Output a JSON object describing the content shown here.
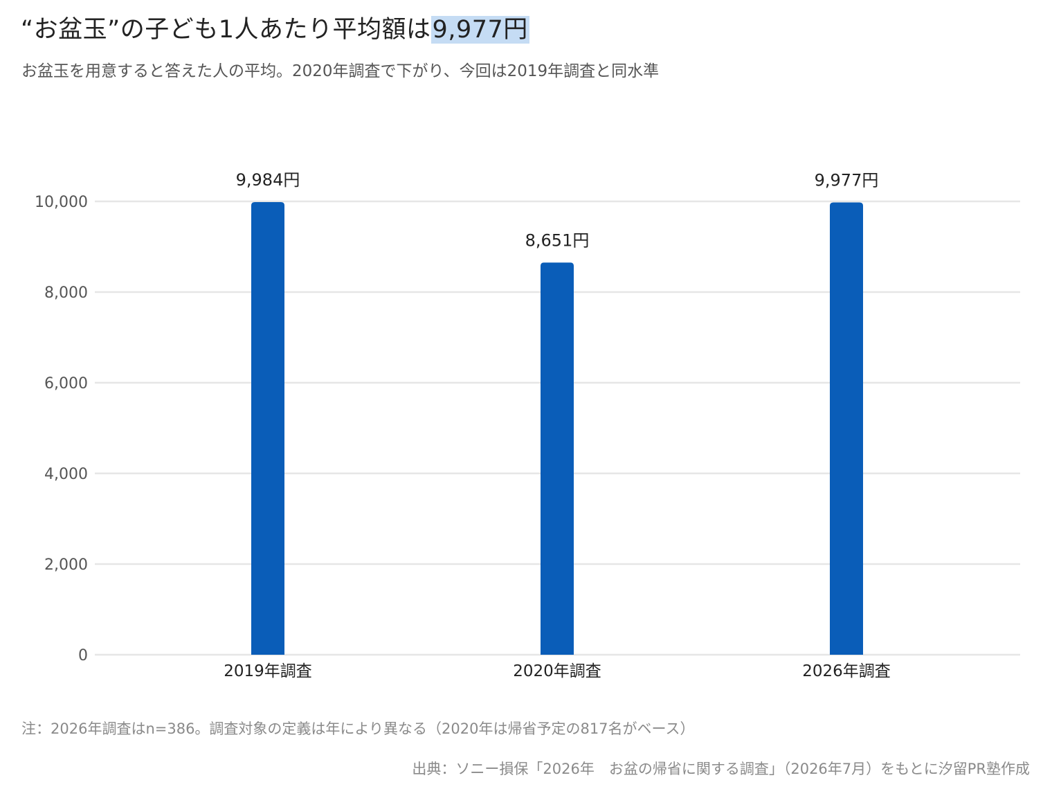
{
  "header": {
    "title_main": "“お盆玉”の子ども1人あたり平均額は",
    "title_highlight": "9,977円",
    "subtitle": "お盆玉を用意すると答えた人の平均。2020年調査で下がり、今回は2019年調査と同水準"
  },
  "footer": {
    "note": "注：2026年調査はn=386。調査対象の定義は年により異なる（2020年は帰省予定の817名がベース）",
    "source": "出典：ソニー損保「2026年　お盆の帰省に関する調査」（2026年7月）をもとに汐留PR塾作成"
  },
  "colors": {
    "bar": "#0a5db8",
    "highlight": "#c5dcf4",
    "grid": "#e6e6e6"
  },
  "chart_data": {
    "type": "bar",
    "categories": [
      "2019年調査",
      "2020年調査",
      "2026年調査"
    ],
    "values": [
      9984,
      8651,
      9977
    ],
    "data_labels": [
      "9,984円",
      "8,651円",
      "9,977円"
    ],
    "y_ticks": [
      0,
      2000,
      4000,
      6000,
      8000,
      10000
    ],
    "y_tick_labels": [
      "0",
      "2,000",
      "4,000",
      "6,000",
      "8,000",
      "10,000"
    ],
    "ylim": [
      0,
      10000
    ],
    "grid": true,
    "legend": "none"
  }
}
